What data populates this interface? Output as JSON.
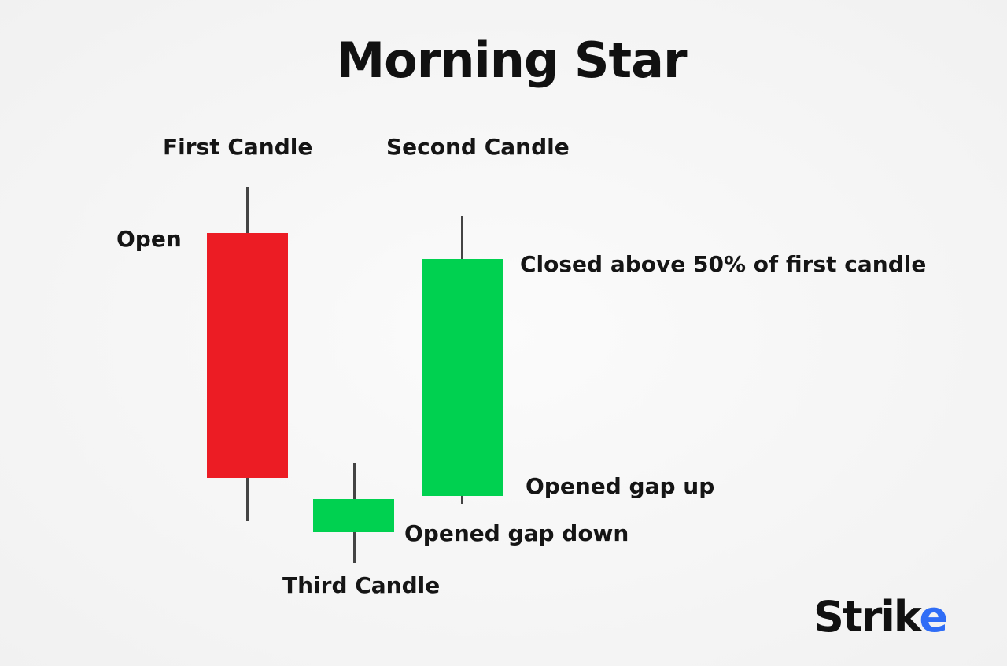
{
  "title": "Morning Star",
  "labels": {
    "first_candle": "First Candle",
    "second_candle": "Second Candle",
    "third_candle": "Third Candle",
    "open": "Open",
    "closed_above": "Closed above 50% of first candle",
    "opened_gap_up": "Opened gap up",
    "opened_gap_down": "Opened gap down"
  },
  "colors": {
    "bearish": "#ec1c24",
    "bullish": "#00d150",
    "brand_accent": "#2f6df6"
  },
  "logo": {
    "main": "Stri",
    "k": "k",
    "accent": "e"
  }
}
